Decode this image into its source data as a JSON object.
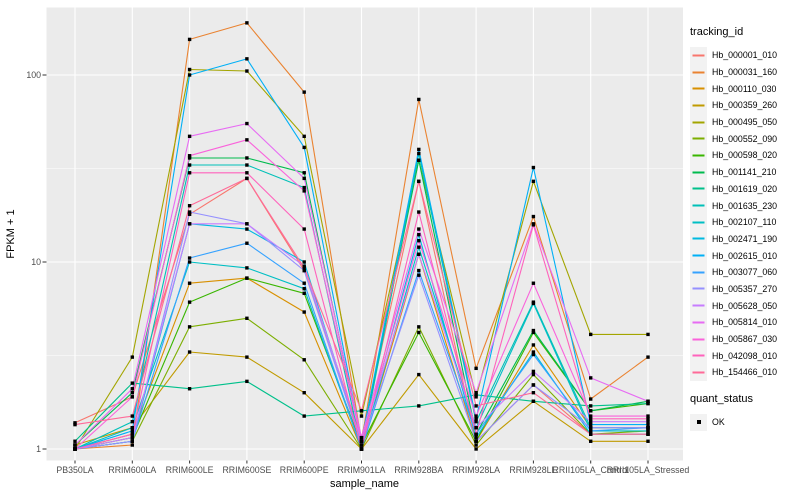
{
  "figure": {
    "panel_background": "#EBEBEB",
    "gridline_color": "#FFFFFF",
    "tick_text_color": "#4D4D4D",
    "marker_color": "#000000"
  },
  "legends": {
    "tracking": {
      "title": "tracking_id"
    },
    "quant": {
      "title": "quant_status",
      "items": [
        {
          "label": "OK",
          "marker": "filled-black-square"
        }
      ]
    }
  },
  "chart_data": {
    "type": "line",
    "title": "",
    "xlabel": "sample_name",
    "ylabel": "FPKM + 1",
    "y_scale": "log10",
    "y_ticks": [
      1,
      10,
      100
    ],
    "ylim_hint": [
      0.93,
      260
    ],
    "grid": "white major + minor gridlines on gray panel",
    "legend_position": "right",
    "point_marker": "black square (quant_status = OK)",
    "categories": [
      "PB350LA",
      "RRIM600LA",
      "RRIM600LE",
      "RRIM600SE",
      "RRIM600PE",
      "RRIM901LA",
      "RRIM928BA",
      "RRIM928LA",
      "RRIM928LE",
      "RRII105LA_Control",
      "RRII105LA_Stressed"
    ],
    "series": [
      {
        "name": "Hb_000001_010",
        "color": "#F8766D",
        "values": [
          1.38,
          1.9,
          18,
          28,
          9,
          1.15,
          27,
          1.1,
          2.2,
          1.2,
          1.2
        ]
      },
      {
        "name": "Hb_000031_160",
        "color": "#EA8331",
        "values": [
          1.0,
          1.05,
          155,
          190,
          81,
          1.1,
          74,
          2.7,
          17.5,
          1.85,
          3.1
        ]
      },
      {
        "name": "Hb_000110_030",
        "color": "#D89000",
        "values": [
          1.0,
          1.2,
          7.7,
          8.2,
          5.4,
          1.0,
          11,
          1.1,
          3.6,
          1.3,
          1.3
        ]
      },
      {
        "name": "Hb_000359_260",
        "color": "#C09B00",
        "values": [
          1.05,
          1.3,
          3.3,
          3.1,
          2.0,
          1.0,
          2.5,
          1.0,
          1.8,
          1.1,
          1.1
        ]
      },
      {
        "name": "Hb_000495_050",
        "color": "#A3A500",
        "values": [
          1.0,
          3.1,
          107,
          105,
          47,
          1.5,
          35,
          1.9,
          27,
          4.1,
          4.1
        ]
      },
      {
        "name": "Hb_000552_090",
        "color": "#7CAE00",
        "values": [
          1.0,
          1.1,
          4.5,
          5.0,
          3.0,
          1.0,
          4.5,
          1.05,
          2.5,
          1.2,
          1.25
        ]
      },
      {
        "name": "Hb_000598_020",
        "color": "#39B600",
        "values": [
          1.0,
          1.15,
          6.1,
          8.2,
          6.8,
          1.05,
          4.2,
          1.1,
          4.2,
          1.6,
          1.75
        ]
      },
      {
        "name": "Hb_001141_210",
        "color": "#00BB4E",
        "values": [
          1.05,
          2.0,
          36,
          36,
          30,
          1.1,
          35,
          1.2,
          4.3,
          1.6,
          1.8
        ]
      },
      {
        "name": "Hb_001619_020",
        "color": "#00C08B",
        "values": [
          1.1,
          2.25,
          2.1,
          2.3,
          1.5,
          1.6,
          1.7,
          1.95,
          1.8,
          1.7,
          1.75
        ]
      },
      {
        "name": "Hb_001635_230",
        "color": "#00C0B8",
        "values": [
          1.0,
          1.4,
          33,
          33,
          25,
          1.0,
          38,
          1.4,
          6.1,
          1.3,
          1.3
        ]
      },
      {
        "name": "Hb_002107_110",
        "color": "#00BFC4",
        "values": [
          1.0,
          1.3,
          10,
          9.3,
          7.2,
          1.0,
          12,
          1.3,
          6.0,
          1.25,
          1.25
        ]
      },
      {
        "name": "Hb_002471_190",
        "color": "#00BAE0",
        "values": [
          1.0,
          1.1,
          16,
          15,
          10,
          1.05,
          14,
          1.15,
          3.3,
          1.2,
          1.2
        ]
      },
      {
        "name": "Hb_002615_010",
        "color": "#00B0F6",
        "values": [
          1.0,
          1.25,
          100,
          122,
          41,
          1.1,
          40,
          1.45,
          32,
          1.35,
          1.35
        ]
      },
      {
        "name": "Hb_003077_060",
        "color": "#35A2FF",
        "values": [
          1.0,
          1.1,
          10.5,
          12.6,
          7.7,
          1.0,
          9,
          1.2,
          3.2,
          1.25,
          1.3
        ]
      },
      {
        "name": "Hb_005357_270",
        "color": "#9590FF",
        "values": [
          1.0,
          1.1,
          18.5,
          16,
          9,
          1.05,
          8.5,
          1.1,
          2.2,
          1.3,
          1.3
        ]
      },
      {
        "name": "Hb_005628_050",
        "color": "#C77CFF",
        "values": [
          1.0,
          1.15,
          16,
          16,
          9.5,
          1.1,
          11,
          1.3,
          2.6,
          1.4,
          1.4
        ]
      },
      {
        "name": "Hb_005814_010",
        "color": "#E76BF3",
        "values": [
          1.05,
          2.1,
          47,
          55,
          28,
          1.15,
          15,
          2.0,
          16,
          2.4,
          1.8
        ]
      },
      {
        "name": "Hb_005867_030",
        "color": "#FA62DB",
        "values": [
          1.0,
          1.9,
          37,
          45,
          24,
          1.1,
          13,
          1.5,
          7.7,
          1.5,
          1.5
        ]
      },
      {
        "name": "Hb_042098_010",
        "color": "#FF62BC",
        "values": [
          1.0,
          1.2,
          30,
          30,
          15,
          1.0,
          18.5,
          1.2,
          15.8,
          1.45,
          1.45
        ]
      },
      {
        "name": "Hb_154466_010",
        "color": "#FF6A98",
        "values": [
          1.35,
          1.5,
          20,
          28,
          9.3,
          1.6,
          27,
          1.7,
          2.0,
          1.2,
          1.2
        ]
      }
    ]
  }
}
